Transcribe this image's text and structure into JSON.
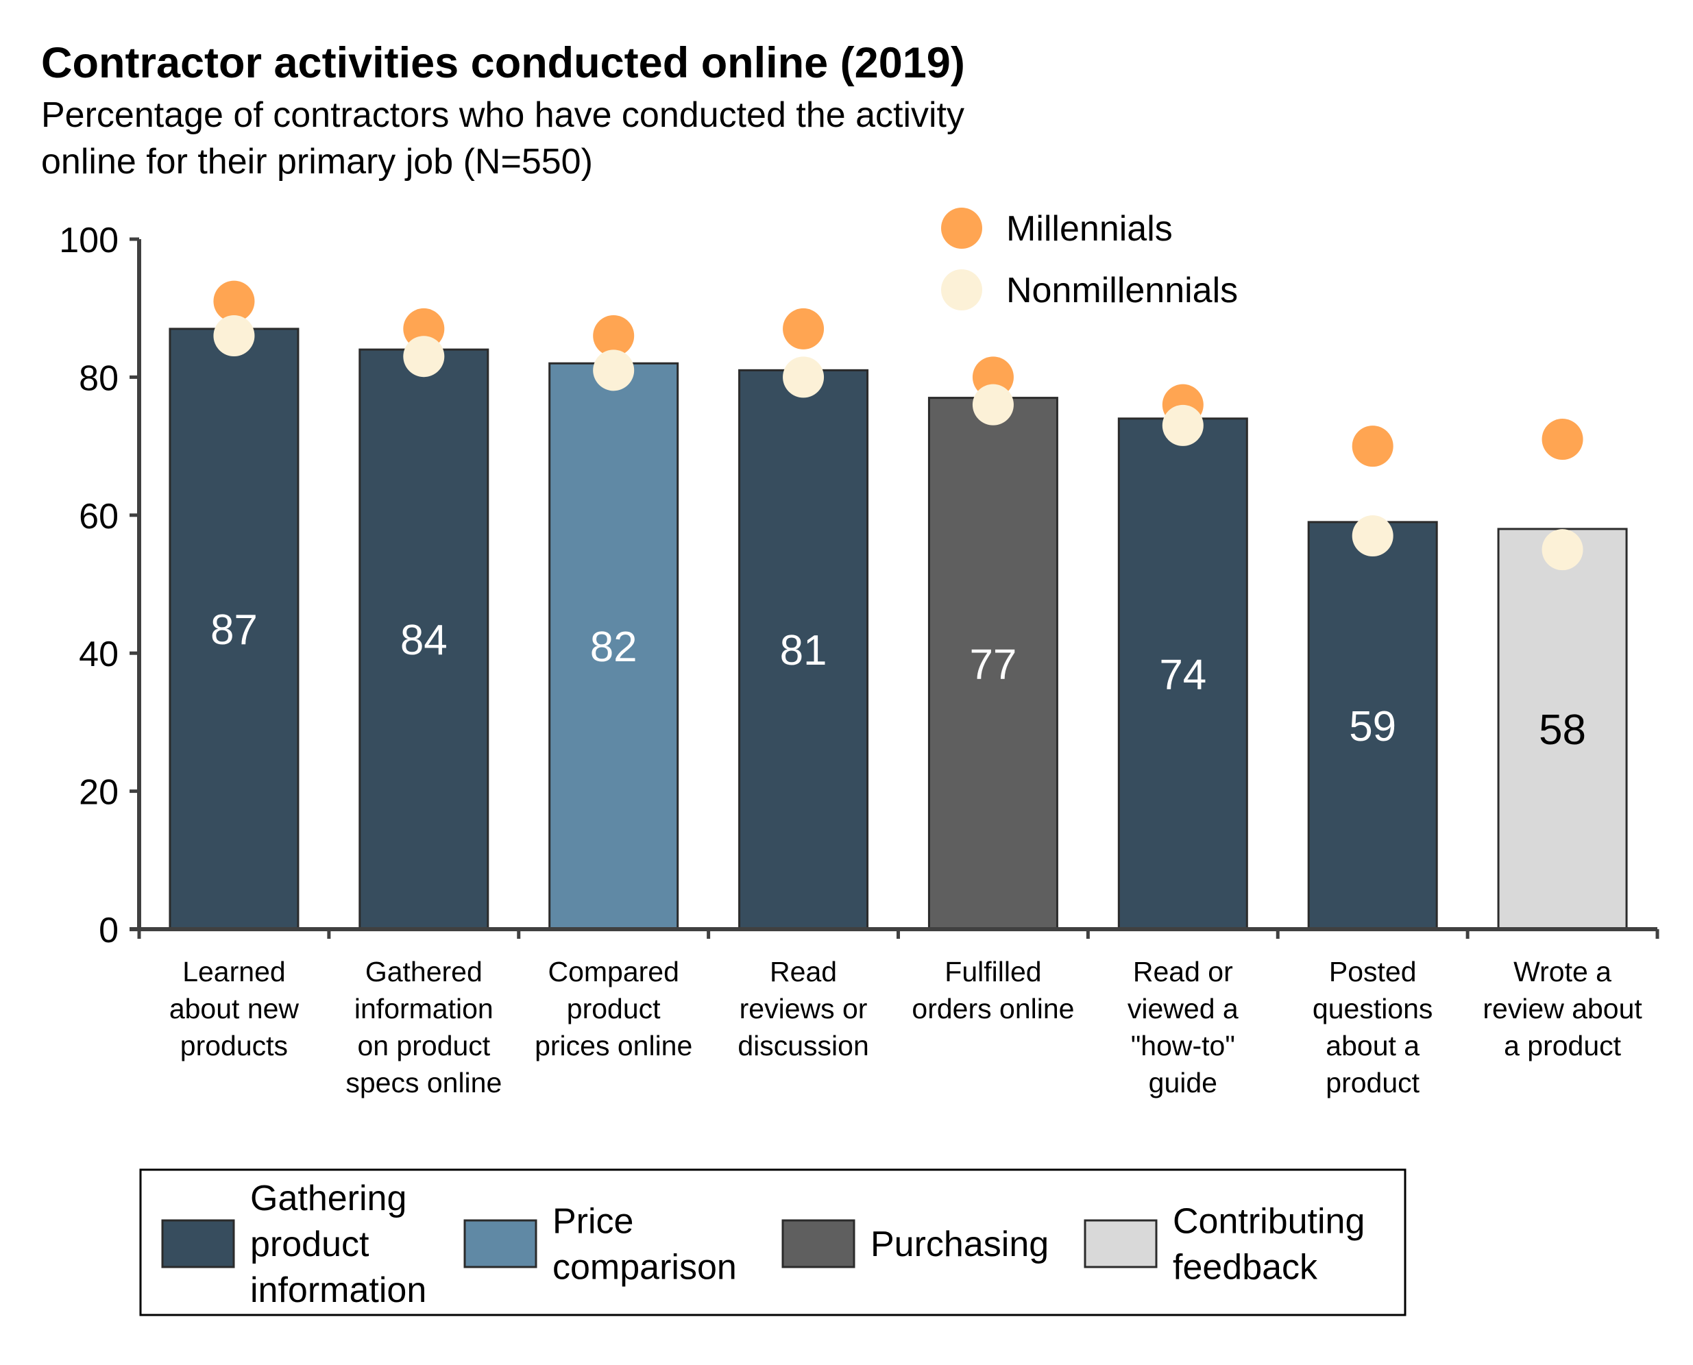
{
  "chart_data": {
    "type": "bar",
    "title": "Contractor activities conducted online (2019)",
    "subtitle": [
      "Percentage of contractors who have conducted the activity",
      "online for their primary job (N=550)"
    ],
    "xlabel": "",
    "ylabel": "",
    "ylim": [
      0,
      100
    ],
    "yticks": [
      "0",
      "20",
      "40",
      "60",
      "80",
      "100"
    ],
    "grid": false,
    "categories": [
      [
        "Learned",
        "about new",
        "products"
      ],
      [
        "Gathered",
        "information",
        "on product",
        "specs online"
      ],
      [
        "Compared",
        "product",
        "prices online"
      ],
      [
        "Read",
        "reviews or",
        "discussion"
      ],
      [
        "Fulfilled",
        "orders online"
      ],
      [
        "Read or",
        "viewed a",
        "\"how-to\"",
        "guide"
      ],
      [
        "Posted",
        "questions",
        "about a",
        "product"
      ],
      [
        "Wrote a",
        "review about",
        "a product"
      ]
    ],
    "values": [
      87,
      84,
      82,
      81,
      77,
      74,
      59,
      58
    ],
    "value_labels": [
      "87",
      "84",
      "82",
      "81",
      "77",
      "74",
      "59",
      "58"
    ],
    "bar_groups": [
      0,
      0,
      1,
      0,
      2,
      0,
      0,
      3
    ],
    "groups": [
      {
        "label": [
          "Gathering",
          "product",
          "information"
        ],
        "color": "#374d5e",
        "text_color": "#ffffff"
      },
      {
        "label": [
          "Price",
          "comparison"
        ],
        "color": "#6089a5",
        "text_color": "#ffffff"
      },
      {
        "label": [
          "Purchasing"
        ],
        "color": "#5f5f5f",
        "text_color": "#ffffff"
      },
      {
        "label": [
          "Contributing",
          "feedback"
        ],
        "color": "#d9d9d9",
        "text_color": "#000000"
      }
    ],
    "series": [
      {
        "name": "Millennials",
        "values": [
          91,
          87,
          86,
          87,
          80,
          76,
          70,
          71
        ],
        "color": "#ffa552"
      },
      {
        "name": "Nonmillennials",
        "values": [
          86,
          83,
          81,
          80,
          76,
          73,
          57,
          55
        ],
        "color": "#fcf1d7"
      }
    ],
    "legend_placement": "top-right",
    "group_legend_placement": "bottom"
  }
}
